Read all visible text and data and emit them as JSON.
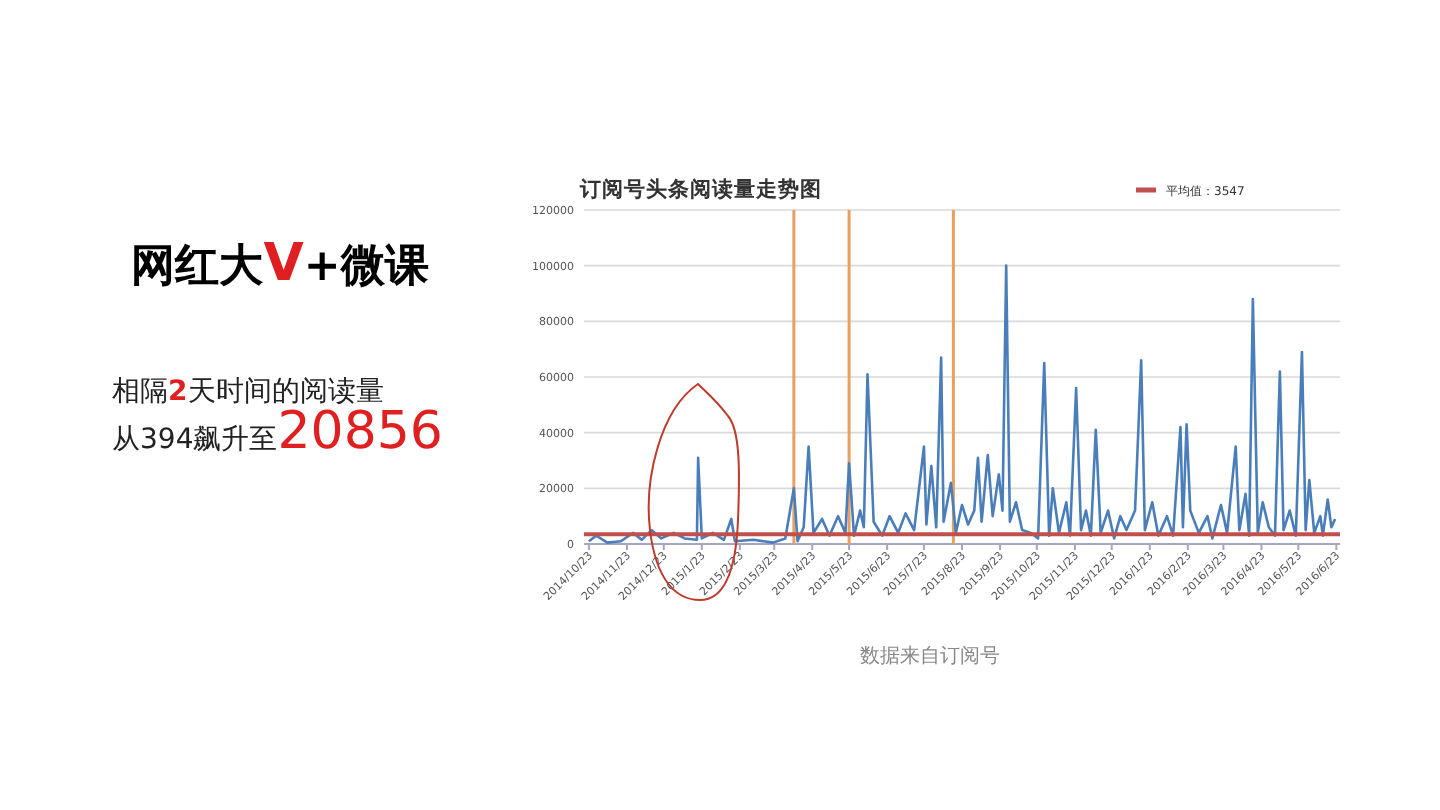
{
  "chart_data": {
    "type": "line",
    "title": "订阅号头条阅读量走势图",
    "annotations": [
      "网红大V+微课",
      "相隔2天时间的阅读量",
      "从394飙升至20856",
      "数据来自订阅号"
    ],
    "x": [
      "2014-10-23",
      "2014-10-29",
      "2014-11-07",
      "2014-11-18",
      "2014-11-28",
      "2014-12-05",
      "2014-12-13",
      "2014-12-21",
      "2014-12-31",
      "2015-01-09",
      "2015-01-19",
      "2015-01-20",
      "2015-01-23",
      "2015-02-01",
      "2015-02-10",
      "2015-02-16",
      "2015-02-19",
      "2015-03-06",
      "2015-03-22",
      "2015-04-01",
      "2015-04-08",
      "2015-04-11",
      "2015-04-16",
      "2015-04-20",
      "2015-04-24",
      "2015-05-01",
      "2015-05-07",
      "2015-05-14",
      "2015-05-20",
      "2015-05-23",
      "2015-05-27",
      "2015-06-01",
      "2015-06-04",
      "2015-06-07",
      "2015-06-12",
      "2015-06-19",
      "2015-06-25",
      "2015-07-02",
      "2015-07-08",
      "2015-07-15",
      "2015-07-23",
      "2015-07-25",
      "2015-07-29",
      "2015-08-02",
      "2015-08-06",
      "2015-08-08",
      "2015-08-14",
      "2015-08-18",
      "2015-08-23",
      "2015-08-28",
      "2015-09-02",
      "2015-09-05",
      "2015-09-08",
      "2015-09-13",
      "2015-09-17",
      "2015-09-22",
      "2015-09-25",
      "2015-09-28",
      "2015-10-01",
      "2015-10-06",
      "2015-10-11",
      "2015-10-18",
      "2015-10-24",
      "2015-10-29",
      "2015-11-02",
      "2015-11-05",
      "2015-11-10",
      "2015-11-16",
      "2015-11-19",
      "2015-11-24",
      "2015-11-28",
      "2015-12-02",
      "2015-12-06",
      "2015-12-10",
      "2015-12-14",
      "2015-12-20",
      "2015-12-25",
      "2015-12-30",
      "2016-01-04",
      "2016-01-11",
      "2016-01-16",
      "2016-01-19",
      "2016-01-25",
      "2016-01-30",
      "2016-02-06",
      "2016-02-11",
      "2016-02-17",
      "2016-02-19",
      "2016-02-22",
      "2016-02-25",
      "2016-03-03",
      "2016-03-10",
      "2016-03-14",
      "2016-03-21",
      "2016-03-26",
      "2016-04-02",
      "2016-04-05",
      "2016-04-10",
      "2016-04-13",
      "2016-04-16",
      "2016-04-20",
      "2016-04-24",
      "2016-04-29",
      "2016-05-04",
      "2016-05-08",
      "2016-05-11",
      "2016-05-16",
      "2016-05-21",
      "2016-05-26",
      "2016-05-29",
      "2016-06-01",
      "2016-06-05",
      "2016-06-10",
      "2016-06-12",
      "2016-06-16",
      "2016-06-19",
      "2016-06-22"
    ],
    "series": [
      {
        "color": "#4a7ebb",
        "values": [
          1000,
          3000,
          500,
          1000,
          4000,
          1500,
          5000,
          2000,
          4000,
          2000,
          1500,
          31000,
          2000,
          4000,
          1500,
          9000,
          1000,
          1500,
          500,
          2000,
          20000,
          1000,
          6000,
          35000,
          4000,
          9000,
          3000,
          10000,
          4000,
          29000,
          3000,
          12000,
          6000,
          61000,
          8000,
          3000,
          10000,
          4000,
          11000,
          5000,
          35000,
          7000,
          28000,
          6000,
          67000,
          8000,
          22000,
          4000,
          14000,
          7000,
          12000,
          31000,
          8000,
          32000,
          10000,
          25000,
          12000,
          100000,
          8000,
          15000,
          5000,
          4000,
          2000,
          65000,
          3000,
          20000,
          4000,
          15000,
          3000,
          56000,
          5000,
          12000,
          3000,
          41000,
          4000,
          12000,
          2000,
          10000,
          5000,
          12000,
          66000,
          5000,
          15000,
          3000,
          10000,
          3000,
          42000,
          6000,
          43000,
          12000,
          4000,
          10000,
          2000,
          14000,
          4000,
          35000,
          5000,
          18000,
          3000,
          88000,
          4000,
          15000,
          6000,
          3000,
          62000,
          5000,
          12000,
          3000,
          69000,
          5000,
          23000,
          4000,
          10000,
          3000,
          16000,
          6000,
          9000
        ]
      }
    ],
    "xlim": [
      "2014-10-19",
      "2016-06-26"
    ],
    "xticks": [
      {
        "value": "2014-10-23",
        "label": "2014/10/23"
      },
      {
        "value": "2014-11-23",
        "label": "2014/11/23"
      },
      {
        "value": "2014-12-23",
        "label": "2014/12/23"
      },
      {
        "value": "2015-01-23",
        "label": "2015/1/23"
      },
      {
        "value": "2015-02-23",
        "label": "2015/2/23"
      },
      {
        "value": "2015-03-23",
        "label": "2015/3/23"
      },
      {
        "value": "2015-04-23",
        "label": "2015/4/23"
      },
      {
        "value": "2015-05-23",
        "label": "2015/5/23"
      },
      {
        "value": "2015-06-23",
        "label": "2015/6/23"
      },
      {
        "value": "2015-07-23",
        "label": "2015/7/23"
      },
      {
        "value": "2015-08-23",
        "label": "2015/8/23"
      },
      {
        "value": "2015-09-23",
        "label": "2015/9/23"
      },
      {
        "value": "2015-10-23",
        "label": "2015/10/23"
      },
      {
        "value": "2015-11-23",
        "label": "2015/11/23"
      },
      {
        "value": "2015-12-23",
        "label": "2015/12/23"
      },
      {
        "value": "2016-01-23",
        "label": "2016/1/23"
      },
      {
        "value": "2016-02-23",
        "label": "2016/2/23"
      },
      {
        "value": "2016-03-23",
        "label": "2016/3/23"
      },
      {
        "value": "2016-04-23",
        "label": "2016/4/23"
      },
      {
        "value": "2016-05-23",
        "label": "2016/5/23"
      },
      {
        "value": "2016-06-23",
        "label": "2016/6/23"
      }
    ],
    "ylim": [
      0,
      120000
    ],
    "yticks": [
      0,
      20000,
      40000,
      60000,
      80000,
      100000,
      120000
    ],
    "grid": "y",
    "legend": "top right",
    "line_style": "solid",
    "ref_lines": [
      {
        "axis": "y",
        "value": 3547,
        "label": "平均值：3547",
        "color": "#c0504d"
      },
      {
        "axis": "x",
        "value": "2015-04-08",
        "color": "#e8a060"
      },
      {
        "axis": "x",
        "value": "2015-05-23",
        "color": "#e8a060"
      },
      {
        "axis": "x",
        "value": "2015-08-16",
        "color": "#e8a060"
      }
    ]
  }
}
